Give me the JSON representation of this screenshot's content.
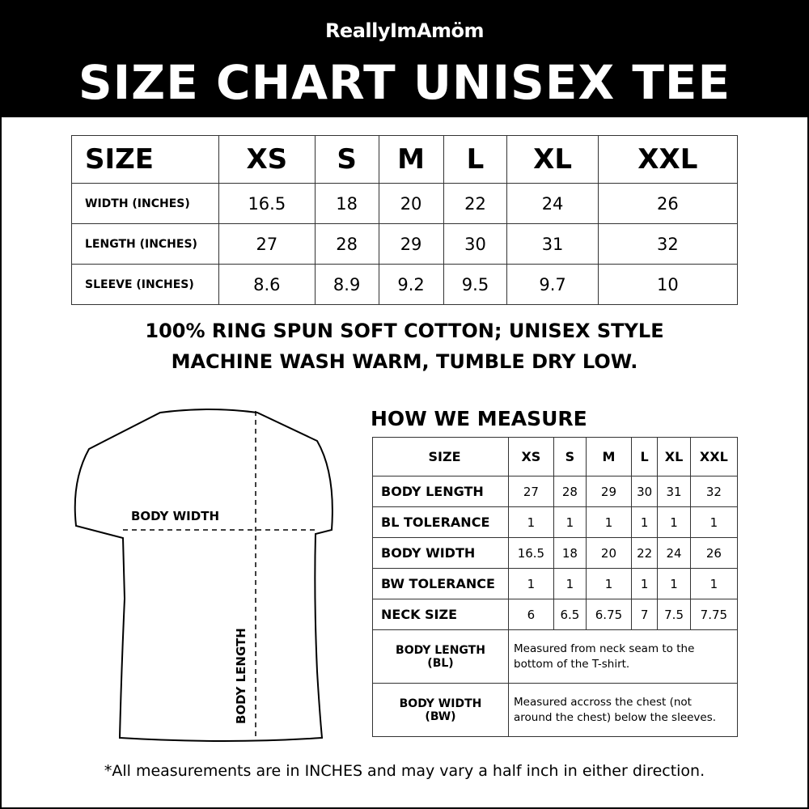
{
  "header": {
    "brand": "ReallyImAmöm",
    "title": "SIZE CHART UNISEX TEE"
  },
  "size_table": {
    "header": [
      "SIZE",
      "XS",
      "S",
      "M",
      "L",
      "XL",
      "XXL"
    ],
    "rows": [
      {
        "label": "WIDTH (INCHES)",
        "values": [
          "16.5",
          "18",
          "20",
          "22",
          "24",
          "26"
        ]
      },
      {
        "label": "LENGTH (INCHES)",
        "values": [
          "27",
          "28",
          "29",
          "30",
          "31",
          "32"
        ]
      },
      {
        "label": "SLEEVE (INCHES)",
        "values": [
          "8.6",
          "8.9",
          "9.2",
          "9.5",
          "9.7",
          "10"
        ]
      }
    ]
  },
  "care": {
    "line1": "100% RING SPUN SOFT COTTON; UNISEX STYLE",
    "line2": "MACHINE WASH WARM, TUMBLE DRY LOW."
  },
  "diagram": {
    "body_width": "BODY WIDTH",
    "body_length": "BODY LENGTH"
  },
  "measure": {
    "title": "HOW WE MEASURE",
    "header": [
      "SIZE",
      "XS",
      "S",
      "M",
      "L",
      "XL",
      "XXL"
    ],
    "rows": [
      {
        "label": "BODY LENGTH",
        "values": [
          "27",
          "28",
          "29",
          "30",
          "31",
          "32"
        ]
      },
      {
        "label": "BL TOLERANCE",
        "values": [
          "1",
          "1",
          "1",
          "1",
          "1",
          "1"
        ]
      },
      {
        "label": "BODY WIDTH",
        "values": [
          "16.5",
          "18",
          "20",
          "22",
          "24",
          "26"
        ]
      },
      {
        "label": "BW TOLERANCE",
        "values": [
          "1",
          "1",
          "1",
          "1",
          "1",
          "1"
        ]
      },
      {
        "label": "NECK SIZE",
        "values": [
          "6",
          "6.5",
          "6.75",
          "7",
          "7.5",
          "7.75"
        ]
      }
    ],
    "definitions": [
      {
        "term": "BODY LENGTH",
        "abbr": "(BL)",
        "text1": "Measured from neck seam to the",
        "text2": "bottom of the T-shirt."
      },
      {
        "term": "BODY WIDTH",
        "abbr": "(BW)",
        "text1": "Measured accross the chest (not",
        "text2": "around the chest) below the sleeves."
      }
    ]
  },
  "footer": "*All measurements are in INCHES and may vary a half inch in either direction."
}
